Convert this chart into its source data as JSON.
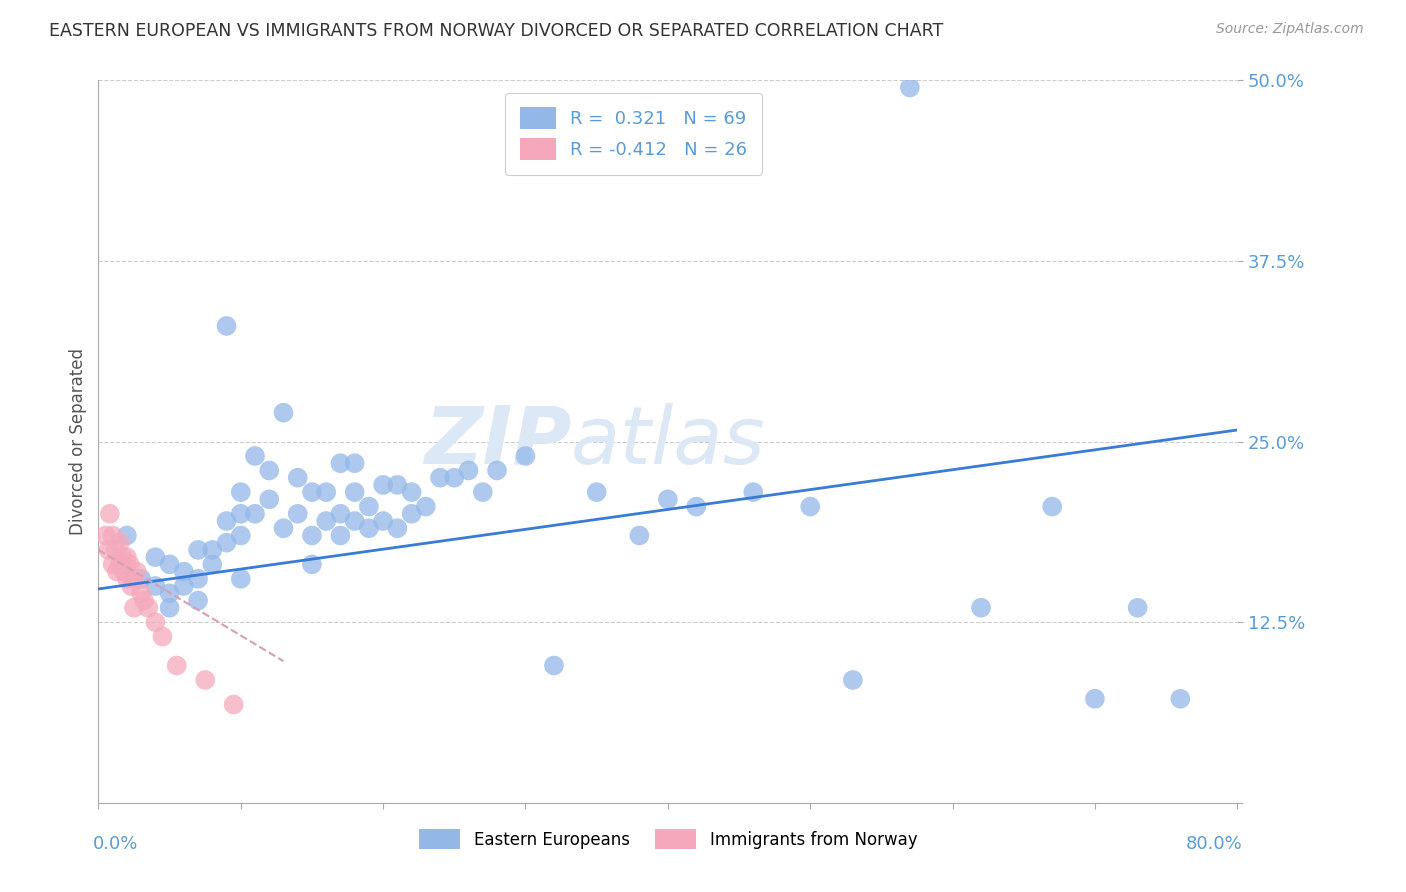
{
  "title": "EASTERN EUROPEAN VS IMMIGRANTS FROM NORWAY DIVORCED OR SEPARATED CORRELATION CHART",
  "source_text": "Source: ZipAtlas.com",
  "ylabel": "Divorced or Separated",
  "watermark_zip": "ZIP",
  "watermark_atlas": "atlas",
  "xlim": [
    0.0,
    0.8
  ],
  "ylim": [
    0.0,
    0.5
  ],
  "yticks": [
    0.0,
    0.125,
    0.25,
    0.375,
    0.5
  ],
  "ytick_labels": [
    "",
    "12.5%",
    "25.0%",
    "37.5%",
    "50.0%"
  ],
  "blue_R": 0.321,
  "blue_N": 69,
  "pink_R": -0.412,
  "pink_N": 26,
  "blue_color": "#93b8e8",
  "pink_color": "#f5a8bb",
  "trend_blue_color": "#3a7bd5",
  "trend_pink_color": "#d4a0b5",
  "blue_label": "Eastern Europeans",
  "pink_label": "Immigrants from Norway",
  "title_color": "#333333",
  "axis_label_color": "#555555",
  "tick_color": "#5b9bd5",
  "grid_color": "#cccccc",
  "watermark_color": "#dce8f5",
  "blue_trend_x0": 0.0,
  "blue_trend_y0": 0.148,
  "blue_trend_x1": 0.8,
  "blue_trend_y1": 0.258,
  "pink_trend_x0": 0.0,
  "pink_trend_y0": 0.175,
  "pink_trend_x1": 0.13,
  "pink_trend_y1": 0.098,
  "blue_x": [
    0.02,
    0.03,
    0.04,
    0.04,
    0.05,
    0.05,
    0.05,
    0.06,
    0.06,
    0.07,
    0.07,
    0.07,
    0.08,
    0.08,
    0.09,
    0.09,
    0.09,
    0.1,
    0.1,
    0.1,
    0.1,
    0.11,
    0.11,
    0.12,
    0.12,
    0.13,
    0.13,
    0.14,
    0.14,
    0.15,
    0.15,
    0.15,
    0.16,
    0.16,
    0.17,
    0.17,
    0.17,
    0.18,
    0.18,
    0.18,
    0.19,
    0.19,
    0.2,
    0.2,
    0.21,
    0.21,
    0.22,
    0.22,
    0.23,
    0.24,
    0.25,
    0.26,
    0.27,
    0.28,
    0.3,
    0.32,
    0.35,
    0.38,
    0.4,
    0.42,
    0.46,
    0.5,
    0.53,
    0.57,
    0.62,
    0.67,
    0.7,
    0.73,
    0.76
  ],
  "blue_y": [
    0.185,
    0.155,
    0.17,
    0.15,
    0.165,
    0.145,
    0.135,
    0.16,
    0.15,
    0.175,
    0.155,
    0.14,
    0.175,
    0.165,
    0.195,
    0.18,
    0.33,
    0.155,
    0.185,
    0.2,
    0.215,
    0.24,
    0.2,
    0.21,
    0.23,
    0.27,
    0.19,
    0.225,
    0.2,
    0.185,
    0.215,
    0.165,
    0.215,
    0.195,
    0.235,
    0.2,
    0.185,
    0.235,
    0.215,
    0.195,
    0.205,
    0.19,
    0.22,
    0.195,
    0.19,
    0.22,
    0.215,
    0.2,
    0.205,
    0.225,
    0.225,
    0.23,
    0.215,
    0.23,
    0.24,
    0.095,
    0.215,
    0.185,
    0.21,
    0.205,
    0.215,
    0.205,
    0.085,
    0.495,
    0.135,
    0.205,
    0.072,
    0.135,
    0.072
  ],
  "pink_x": [
    0.005,
    0.007,
    0.008,
    0.01,
    0.01,
    0.012,
    0.013,
    0.015,
    0.015,
    0.017,
    0.018,
    0.02,
    0.02,
    0.022,
    0.023,
    0.025,
    0.025,
    0.027,
    0.03,
    0.032,
    0.035,
    0.04,
    0.045,
    0.055,
    0.075,
    0.095
  ],
  "pink_y": [
    0.185,
    0.175,
    0.2,
    0.165,
    0.185,
    0.175,
    0.16,
    0.18,
    0.165,
    0.17,
    0.16,
    0.155,
    0.17,
    0.165,
    0.15,
    0.155,
    0.135,
    0.16,
    0.145,
    0.14,
    0.135,
    0.125,
    0.115,
    0.095,
    0.085,
    0.068
  ]
}
